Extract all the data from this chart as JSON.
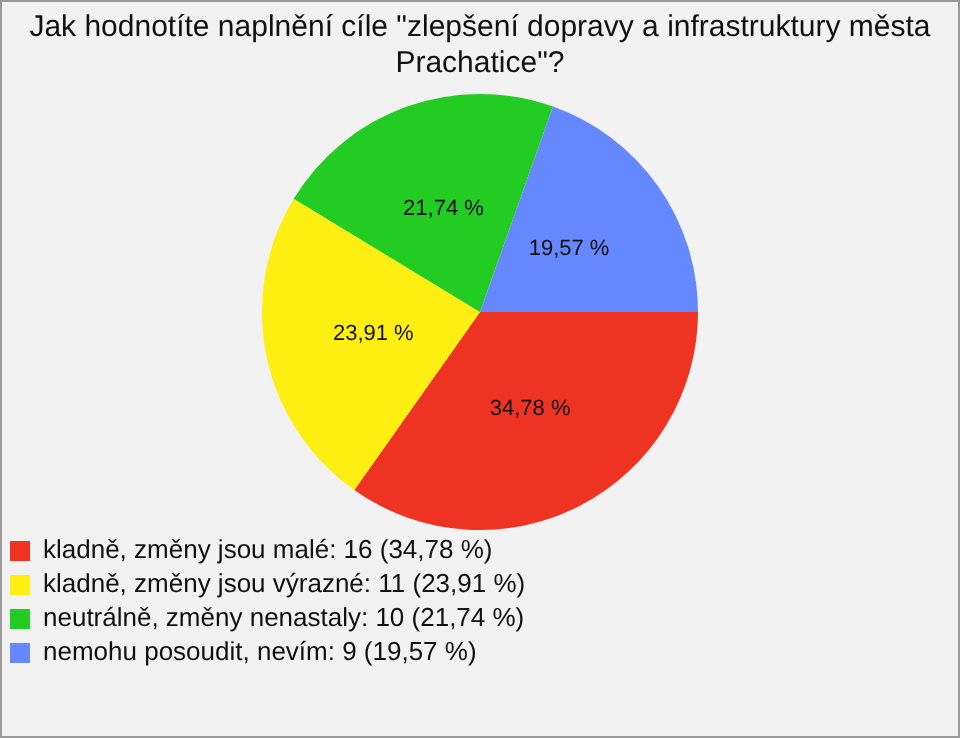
{
  "chart_data": {
    "type": "pie",
    "title": "Jak hodnotíte naplnění cíle \"zlepšení dopravy a infrastruktury města Prachatice\"?",
    "categories": [
      "kladně, změny jsou malé: 16 (34,78 %)",
      "kladně, změny jsou výrazné: 11 (23,91 %)",
      "neutrálně, změny nenastaly: 10 (21,74 %)",
      "nemohu posoudit, nevím: 9 (19,57 %)"
    ],
    "values": [
      34.78,
      23.91,
      21.74,
      19.57
    ],
    "colors": [
      "#ee3322",
      "#ffee11",
      "#22cc22",
      "#6688ff"
    ],
    "value_labels": [
      "34,78 %",
      "23,91 %",
      "21,74 %",
      "19,57 %"
    ],
    "legend": "bottom left"
  }
}
